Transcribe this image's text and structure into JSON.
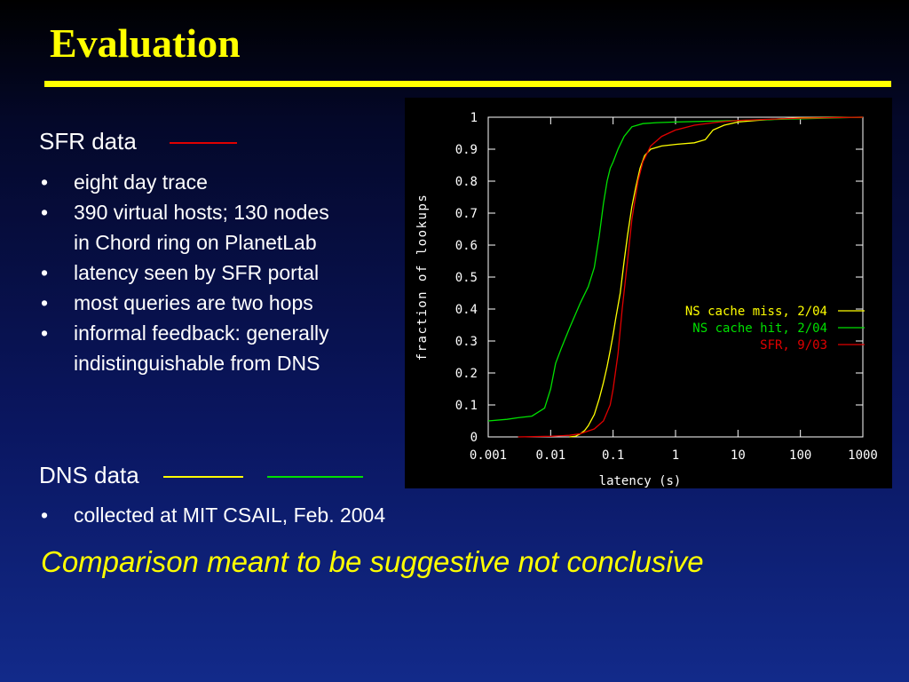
{
  "slide": {
    "title": "Evaluation",
    "sfr": {
      "heading": "SFR data",
      "line_color": "#e00000",
      "bullets": [
        "eight day trace",
        "390 virtual hosts; 130 nodes\nin Chord ring on PlanetLab",
        "latency seen by SFR portal",
        "most queries are two hops",
        "informal feedback: generally\nindistinguishable from DNS"
      ]
    },
    "dns": {
      "heading": "DNS data",
      "line_colors": [
        "#ffff00",
        "#00e000"
      ],
      "bullets": [
        "collected at MIT CSAIL, Feb. 2004"
      ]
    },
    "conclusion": "Comparison meant to be suggestive not conclusive",
    "bullet_glyph": "•"
  },
  "chart_data": {
    "type": "line",
    "title": "",
    "xlabel": "latency (s)",
    "ylabel": "fraction of lookups",
    "x_scale": "log",
    "xlim": [
      0.001,
      1000
    ],
    "ylim": [
      0,
      1
    ],
    "x_ticks": [
      {
        "value": 0.001,
        "label": "0.001"
      },
      {
        "value": 0.01,
        "label": "0.01"
      },
      {
        "value": 0.1,
        "label": "0.1"
      },
      {
        "value": 1,
        "label": "1"
      },
      {
        "value": 10,
        "label": "10"
      },
      {
        "value": 100,
        "label": "100"
      },
      {
        "value": 1000,
        "label": "1000"
      }
    ],
    "y_ticks": [
      {
        "value": 0,
        "label": "0"
      },
      {
        "value": 0.1,
        "label": "0.1"
      },
      {
        "value": 0.2,
        "label": "0.2"
      },
      {
        "value": 0.3,
        "label": "0.3"
      },
      {
        "value": 0.4,
        "label": "0.4"
      },
      {
        "value": 0.5,
        "label": "0.5"
      },
      {
        "value": 0.6,
        "label": "0.6"
      },
      {
        "value": 0.7,
        "label": "0.7"
      },
      {
        "value": 0.8,
        "label": "0.8"
      },
      {
        "value": 0.9,
        "label": "0.9"
      },
      {
        "value": 1,
        "label": "1"
      }
    ],
    "grid": false,
    "legend_position": "right",
    "axis_color": "#ffffff",
    "background": "#000000",
    "series": [
      {
        "name": "NS cache miss, 2/04",
        "color": "#ffff00",
        "points": [
          [
            0.02,
            0
          ],
          [
            0.025,
            0.002
          ],
          [
            0.03,
            0.01
          ],
          [
            0.035,
            0.02
          ],
          [
            0.04,
            0.035
          ],
          [
            0.05,
            0.07
          ],
          [
            0.06,
            0.12
          ],
          [
            0.07,
            0.17
          ],
          [
            0.08,
            0.22
          ],
          [
            0.09,
            0.27
          ],
          [
            0.1,
            0.32
          ],
          [
            0.11,
            0.37
          ],
          [
            0.13,
            0.45
          ],
          [
            0.15,
            0.55
          ],
          [
            0.17,
            0.63
          ],
          [
            0.2,
            0.72
          ],
          [
            0.23,
            0.78
          ],
          [
            0.27,
            0.84
          ],
          [
            0.32,
            0.88
          ],
          [
            0.4,
            0.9
          ],
          [
            0.6,
            0.91
          ],
          [
            1,
            0.915
          ],
          [
            2,
            0.92
          ],
          [
            3,
            0.93
          ],
          [
            4,
            0.96
          ],
          [
            6,
            0.975
          ],
          [
            10,
            0.985
          ],
          [
            20,
            0.99
          ],
          [
            50,
            0.995
          ],
          [
            100,
            0.998
          ],
          [
            1000,
            1
          ]
        ]
      },
      {
        "name": "NS cache hit, 2/04",
        "color": "#00e000",
        "points": [
          [
            0.001,
            0.05
          ],
          [
            0.002,
            0.055
          ],
          [
            0.003,
            0.06
          ],
          [
            0.005,
            0.065
          ],
          [
            0.008,
            0.09
          ],
          [
            0.01,
            0.15
          ],
          [
            0.012,
            0.23
          ],
          [
            0.015,
            0.28
          ],
          [
            0.02,
            0.34
          ],
          [
            0.03,
            0.42
          ],
          [
            0.04,
            0.47
          ],
          [
            0.05,
            0.53
          ],
          [
            0.06,
            0.63
          ],
          [
            0.07,
            0.73
          ],
          [
            0.08,
            0.8
          ],
          [
            0.09,
            0.84
          ],
          [
            0.1,
            0.86
          ],
          [
            0.12,
            0.9
          ],
          [
            0.15,
            0.94
          ],
          [
            0.2,
            0.97
          ],
          [
            0.3,
            0.98
          ],
          [
            0.5,
            0.983
          ],
          [
            1,
            0.985
          ],
          [
            10,
            0.99
          ],
          [
            100,
            0.995
          ],
          [
            1000,
            1
          ]
        ]
      },
      {
        "name": "SFR, 9/03",
        "color": "#e00000",
        "points": [
          [
            0.003,
            0
          ],
          [
            0.01,
            0.002
          ],
          [
            0.02,
            0.005
          ],
          [
            0.03,
            0.01
          ],
          [
            0.05,
            0.025
          ],
          [
            0.07,
            0.05
          ],
          [
            0.09,
            0.1
          ],
          [
            0.1,
            0.15
          ],
          [
            0.12,
            0.26
          ],
          [
            0.14,
            0.4
          ],
          [
            0.17,
            0.55
          ],
          [
            0.2,
            0.68
          ],
          [
            0.25,
            0.8
          ],
          [
            0.3,
            0.86
          ],
          [
            0.4,
            0.91
          ],
          [
            0.6,
            0.94
          ],
          [
            1,
            0.96
          ],
          [
            2,
            0.975
          ],
          [
            5,
            0.985
          ],
          [
            10,
            0.99
          ],
          [
            100,
            0.997
          ],
          [
            1000,
            1
          ]
        ]
      }
    ]
  }
}
